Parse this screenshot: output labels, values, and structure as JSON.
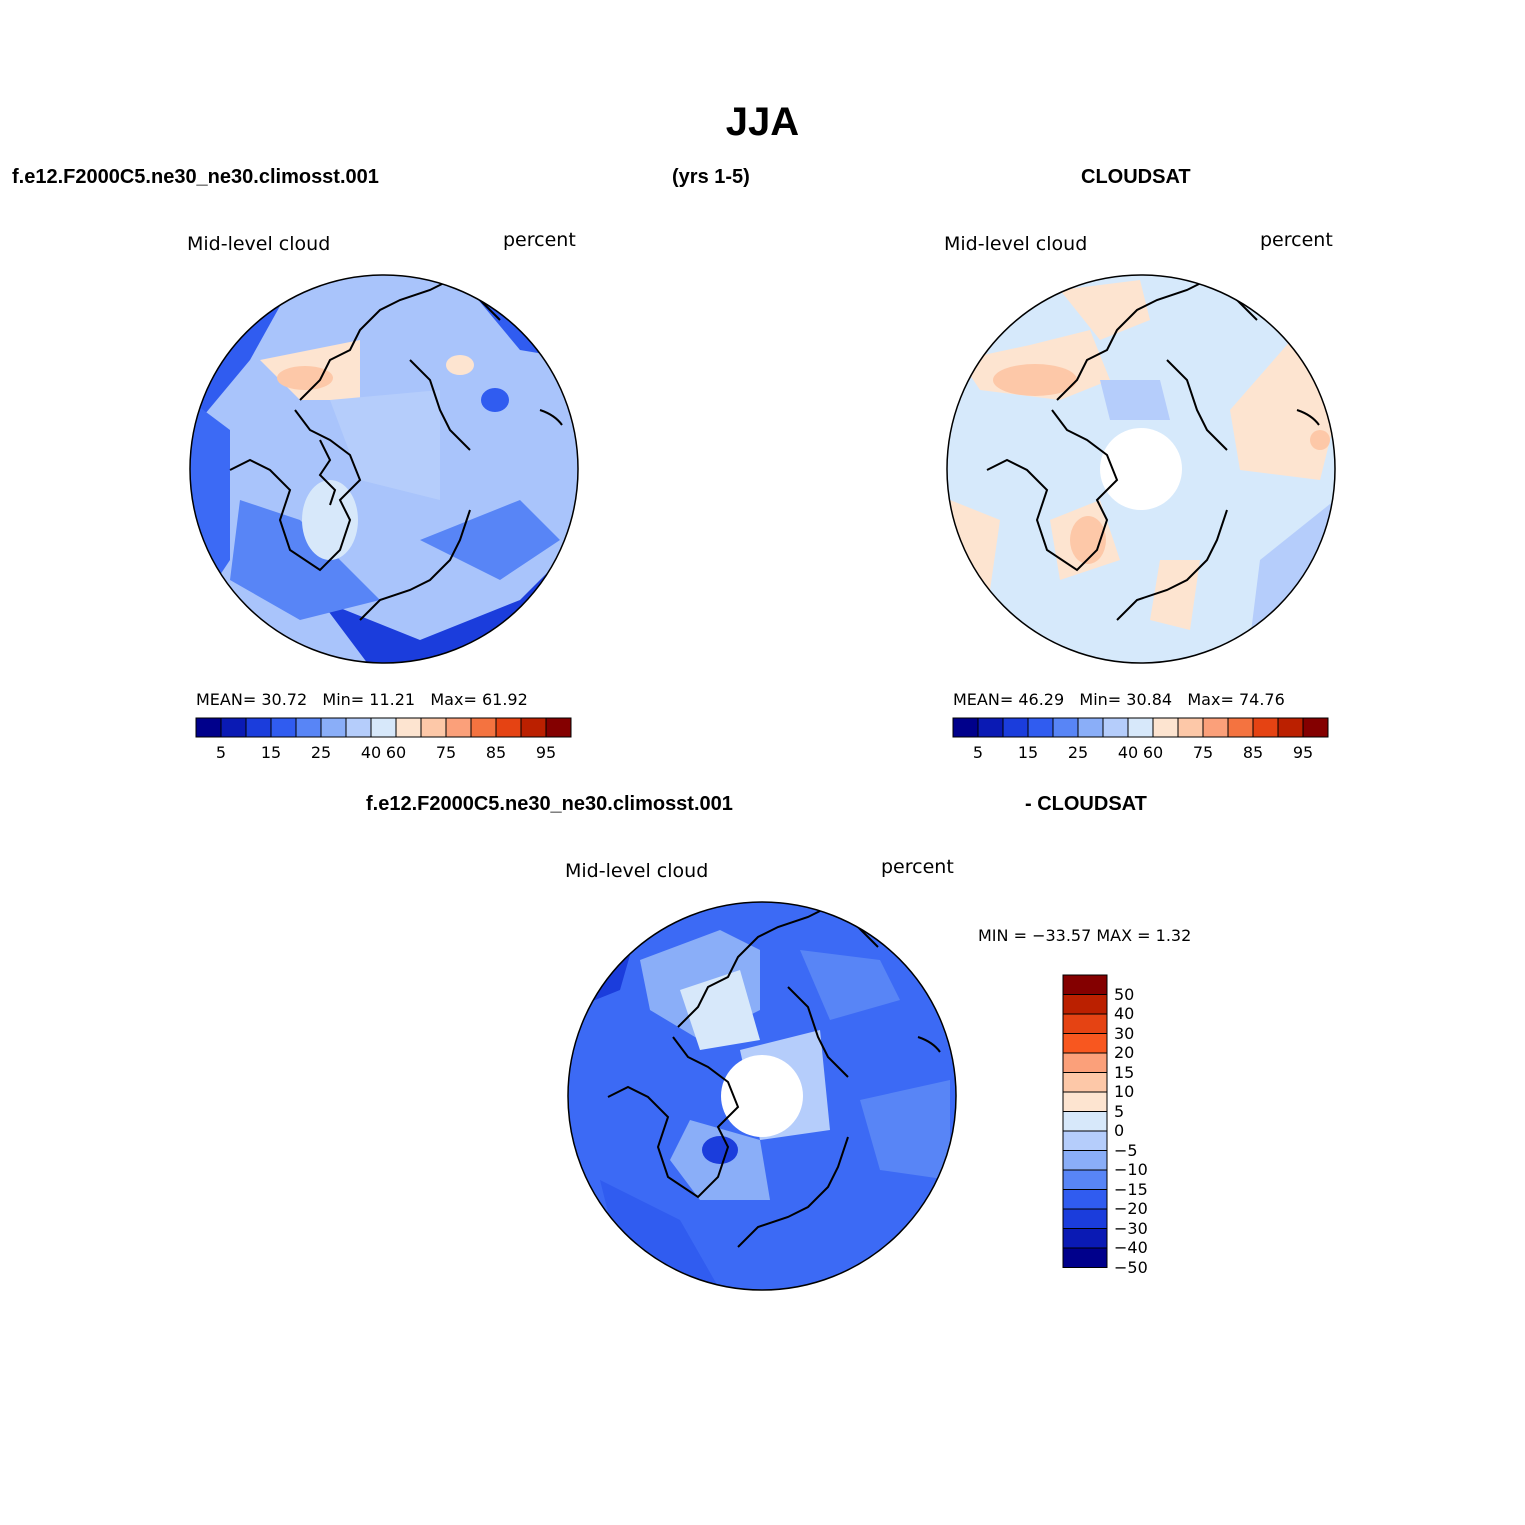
{
  "title": "JJA",
  "panels": {
    "left_header": "f.e12.F2000C5.ne30_ne30.climosst.001",
    "years": "(yrs 1-5)",
    "right_header": "CLOUDSAT",
    "diff_left": "f.e12.F2000C5.ne30_ne30.climosst.001",
    "diff_right": "- CLOUDSAT"
  },
  "model_map": {
    "variable": "Mid-level cloud",
    "units": "percent",
    "stats": {
      "mean_label": "MEAN=",
      "mean": "30.72",
      "min_label": "Min=",
      "min": "11.21",
      "max_label": "Max=",
      "max": "61.92"
    },
    "base_color": "#a9c4fb"
  },
  "obs_map": {
    "variable": "Mid-level cloud",
    "units": "percent",
    "stats": {
      "mean_label": "MEAN=",
      "mean": "46.29",
      "min_label": "Min=",
      "min": "30.84",
      "max_label": "Max=",
      "max": "74.76"
    },
    "base_color": "#d6e9fb",
    "pole_hole": true
  },
  "diff_map": {
    "variable": "Mid-level cloud",
    "units": "percent",
    "minmax_text": "MIN = −33.57 MAX =    1.32",
    "base_color": "#3c6af5",
    "pole_hole": true
  },
  "colorbar_horizontal": {
    "colors": [
      "#00008b",
      "#0a1ab4",
      "#1b3ddc",
      "#305cf0",
      "#5885f6",
      "#8aaef8",
      "#b5cdfb",
      "#d7e8fa",
      "#fde4d0",
      "#fdc8a8",
      "#fba07a",
      "#f47340",
      "#e54313",
      "#bb2000",
      "#840000"
    ],
    "labels": [
      "5",
      "15",
      "25",
      "40",
      "60",
      "75",
      "85",
      "95"
    ]
  },
  "colorbar_vertical": {
    "colors": [
      "#840000",
      "#bb2000",
      "#e54313",
      "#f8571f",
      "#fba07a",
      "#fdc8a8",
      "#fde4d0",
      "#d7e8fa",
      "#b5cdfb",
      "#8aaef8",
      "#5885f6",
      "#305cf0",
      "#1b3ddc",
      "#0a1ab4",
      "#00008b"
    ],
    "labels": [
      "50",
      "40",
      "30",
      "20",
      "15",
      "10",
      "5",
      "0",
      "−5",
      "−10",
      "−15",
      "−20",
      "−30",
      "−40",
      "−50"
    ]
  }
}
